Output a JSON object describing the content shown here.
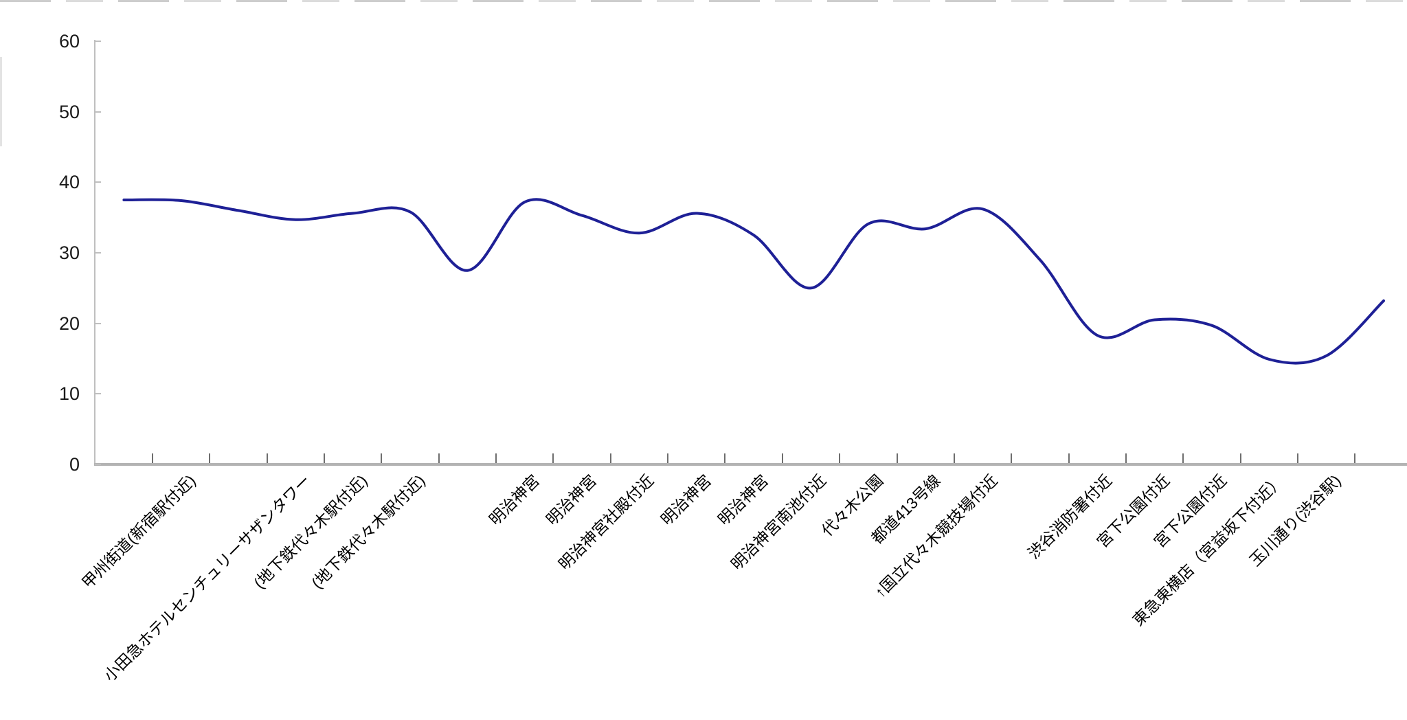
{
  "chart_data": {
    "type": "line",
    "title": "",
    "xlabel": "",
    "ylabel": "",
    "categories": [
      "",
      "甲州街道(新宿駅付近)",
      "",
      "小田急ホテルセンチュリーサザンタワー",
      "(地下鉄代々木駅付近)",
      "(地下鉄代々木駅付近)",
      "",
      "明治神宮",
      "明治神宮",
      "明治神宮社殿付近",
      "明治神宮",
      "明治神宮",
      "明治神宮南池付近",
      "代々木公園",
      "都道413号線",
      "↑国立代々木競技場付近",
      "",
      "渋谷消防署付近",
      "宮下公園付近",
      "宮下公園付近",
      "東急東横店（宮益坂下付近）",
      "玉川通り(渋谷駅)",
      ""
    ],
    "values": [
      37.5,
      37.4,
      36.0,
      34.7,
      35.6,
      35.8,
      27.5,
      37.2,
      35.3,
      32.8,
      35.6,
      32.5,
      25.0,
      34.1,
      33.4,
      36.2,
      29.0,
      18.3,
      20.5,
      19.7,
      14.9,
      15.4,
      23.2
    ],
    "ylim": [
      0,
      60
    ],
    "yticks": [
      0,
      10,
      20,
      30,
      40,
      50,
      60
    ],
    "smooth": true,
    "grid": false,
    "legend": "none",
    "line_color": "#1e2096"
  }
}
